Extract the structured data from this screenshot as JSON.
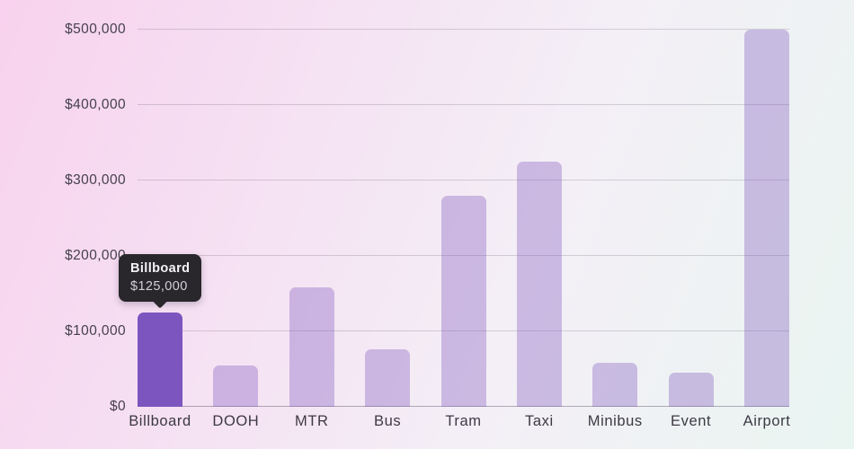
{
  "chart_data": {
    "type": "bar",
    "title": "",
    "xlabel": "",
    "ylabel": "",
    "categories": [
      "Billboard",
      "DOOH",
      "MTR",
      "Bus",
      "Tram",
      "Taxi",
      "Minibus",
      "Event",
      "Airport"
    ],
    "values": [
      125000,
      55000,
      158000,
      76000,
      280000,
      325000,
      58000,
      45000,
      500000
    ],
    "ylim": [
      0,
      500000
    ],
    "yticks": [
      {
        "value": 0,
        "label": "$0"
      },
      {
        "value": 100000,
        "label": "$100,000"
      },
      {
        "value": 200000,
        "label": "$200,000"
      },
      {
        "value": 300000,
        "label": "$300,000"
      },
      {
        "value": 400000,
        "label": "$400,000"
      },
      {
        "value": 500000,
        "label": "$500,000"
      }
    ],
    "grid": true,
    "legend": false,
    "legend_position": "none",
    "highlighted_index": 0
  },
  "tooltip": {
    "title": "Billboard",
    "value": "$125,000"
  },
  "colors": {
    "bar_default": "#7d55be",
    "bar_default_opacity": "0.35",
    "bar_highlight": "#7d55be",
    "tooltip_bg": "#29262c",
    "tooltip_title_text": "#f5f3f7",
    "tooltip_value_text": "#d3d0d8",
    "axis_label_text": "#46404e",
    "gridline": "rgba(70,60,85,0.20)",
    "baseline": "rgba(70,60,85,0.40)",
    "background_gradient": [
      "#f8d2ee",
      "#f5e1f3",
      "#f4eff6",
      "#e9f5f1"
    ]
  }
}
